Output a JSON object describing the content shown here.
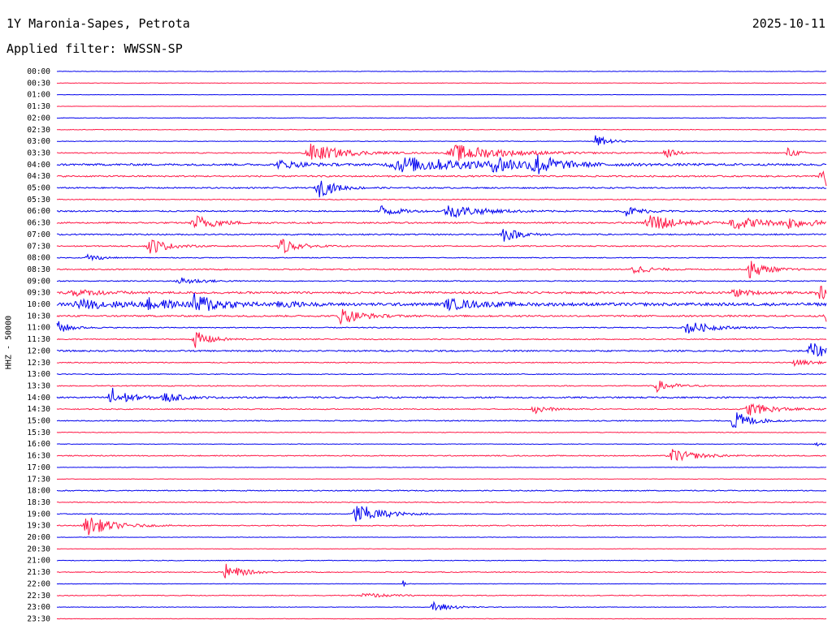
{
  "header": {
    "station": "1Y Maronia-Sapes, Petrota",
    "date": "2025-10-11",
    "filter_label": "Applied filter: WWSSN-SP"
  },
  "side_label": "HHZ - 50000",
  "colors": {
    "odd": "#0000ee",
    "even": "#ff1745",
    "ticks": "#000000"
  },
  "chart_data": {
    "type": "line",
    "title": "1Y Maronia-Sapes, Petrota",
    "subtitle": "Applied filter: WWSSN-SP",
    "ylabel": "HHZ - 50000",
    "xlabel": "",
    "row_labels": [
      "00:00",
      "00:30",
      "01:00",
      "01:30",
      "02:00",
      "02:30",
      "03:00",
      "03:30",
      "04:00",
      "04:30",
      "05:00",
      "05:30",
      "06:00",
      "06:30",
      "07:00",
      "07:30",
      "08:00",
      "08:30",
      "09:00",
      "09:30",
      "10:00",
      "10:30",
      "11:00",
      "11:30",
      "12:00",
      "12:30",
      "13:00",
      "13:30",
      "14:00",
      "14:30",
      "15:00",
      "15:30",
      "16:00",
      "16:30",
      "17:00",
      "17:30",
      "18:00",
      "18:30",
      "19:00",
      "19:30",
      "20:00",
      "20:30",
      "21:00",
      "21:30",
      "22:00",
      "22:30",
      "23:00",
      "23:30"
    ],
    "row_duration_min": 30,
    "noise_levels": [
      0.3,
      0.3,
      0.2,
      0.2,
      0.35,
      0.35,
      0.35,
      0.6,
      1.2,
      0.9,
      0.8,
      0.5,
      0.8,
      0.9,
      0.8,
      0.7,
      0.5,
      0.7,
      0.6,
      1.2,
      1.8,
      1.0,
      0.6,
      0.6,
      0.9,
      0.6,
      0.5,
      0.6,
      0.9,
      0.6,
      0.6,
      0.4,
      0.3,
      0.6,
      0.3,
      0.3,
      0.6,
      0.5,
      0.5,
      0.6,
      0.3,
      0.3,
      0.4,
      0.5,
      0.3,
      0.5,
      0.3,
      0.3
    ],
    "events": [
      {
        "row": 6,
        "t": 0.7,
        "amp": 8,
        "dur": 0.015
      },
      {
        "row": 7,
        "t": 0.33,
        "amp": 11,
        "dur": 0.04
      },
      {
        "row": 7,
        "t": 0.52,
        "amp": 10,
        "dur": 0.06
      },
      {
        "row": 7,
        "t": 0.79,
        "amp": 7,
        "dur": 0.012
      },
      {
        "row": 7,
        "t": 0.95,
        "amp": 6,
        "dur": 0.012
      },
      {
        "row": 8,
        "t": 0.29,
        "amp": 5,
        "dur": 0.03
      },
      {
        "row": 8,
        "t": 0.45,
        "amp": 9,
        "dur": 0.1
      },
      {
        "row": 8,
        "t": 0.57,
        "amp": 9,
        "dur": 0.03
      },
      {
        "row": 8,
        "t": 0.62,
        "amp": 13,
        "dur": 0.025
      },
      {
        "row": 9,
        "t": 0.995,
        "amp": 18,
        "dur": 0.02
      },
      {
        "row": 10,
        "t": 0.34,
        "amp": 12,
        "dur": 0.02
      },
      {
        "row": 12,
        "t": 0.42,
        "amp": 8,
        "dur": 0.02
      },
      {
        "row": 12,
        "t": 0.51,
        "amp": 8,
        "dur": 0.04
      },
      {
        "row": 12,
        "t": 0.74,
        "amp": 6,
        "dur": 0.02
      },
      {
        "row": 13,
        "t": 0.18,
        "amp": 10,
        "dur": 0.025
      },
      {
        "row": 13,
        "t": 0.77,
        "amp": 13,
        "dur": 0.03
      },
      {
        "row": 13,
        "t": 0.88,
        "amp": 8,
        "dur": 0.04
      },
      {
        "row": 13,
        "t": 0.95,
        "amp": 6,
        "dur": 0.03
      },
      {
        "row": 14,
        "t": 0.58,
        "amp": 9,
        "dur": 0.02
      },
      {
        "row": 15,
        "t": 0.12,
        "amp": 11,
        "dur": 0.02
      },
      {
        "row": 15,
        "t": 0.29,
        "amp": 10,
        "dur": 0.02
      },
      {
        "row": 16,
        "t": 0.04,
        "amp": 5,
        "dur": 0.015
      },
      {
        "row": 17,
        "t": 0.75,
        "amp": 6,
        "dur": 0.02
      },
      {
        "row": 17,
        "t": 0.9,
        "amp": 12,
        "dur": 0.02
      },
      {
        "row": 18,
        "t": 0.16,
        "amp": 5,
        "dur": 0.025
      },
      {
        "row": 19,
        "t": 0.02,
        "amp": 4,
        "dur": 0.04
      },
      {
        "row": 19,
        "t": 0.88,
        "amp": 5,
        "dur": 0.02
      },
      {
        "row": 19,
        "t": 0.99,
        "amp": 9,
        "dur": 0.02
      },
      {
        "row": 20,
        "t": 0.03,
        "amp": 5,
        "dur": 0.06
      },
      {
        "row": 20,
        "t": 0.12,
        "amp": 6,
        "dur": 0.03
      },
      {
        "row": 20,
        "t": 0.18,
        "amp": 12,
        "dur": 0.03
      },
      {
        "row": 20,
        "t": 0.29,
        "amp": 4,
        "dur": 0.02
      },
      {
        "row": 20,
        "t": 0.51,
        "amp": 6,
        "dur": 0.04
      },
      {
        "row": 21,
        "t": 0.37,
        "amp": 10,
        "dur": 0.025
      },
      {
        "row": 21,
        "t": 1.0,
        "amp": 10,
        "dur": 0.015
      },
      {
        "row": 22,
        "t": 0.0,
        "amp": 9,
        "dur": 0.015
      },
      {
        "row": 22,
        "t": 0.82,
        "amp": 8,
        "dur": 0.03
      },
      {
        "row": 23,
        "t": 0.18,
        "amp": 10,
        "dur": 0.02
      },
      {
        "row": 24,
        "t": 0.98,
        "amp": 10,
        "dur": 0.025
      },
      {
        "row": 25,
        "t": 0.96,
        "amp": 4,
        "dur": 0.02
      },
      {
        "row": 27,
        "t": 0.78,
        "amp": 7,
        "dur": 0.02
      },
      {
        "row": 28,
        "t": 0.07,
        "amp": 14,
        "dur": 0.02
      },
      {
        "row": 28,
        "t": 0.14,
        "amp": 6,
        "dur": 0.02
      },
      {
        "row": 29,
        "t": 0.62,
        "amp": 7,
        "dur": 0.015
      },
      {
        "row": 29,
        "t": 0.9,
        "amp": 8,
        "dur": 0.03
      },
      {
        "row": 30,
        "t": 0.88,
        "amp": 13,
        "dur": 0.02
      },
      {
        "row": 32,
        "t": 0.985,
        "amp": 5,
        "dur": 0.005
      },
      {
        "row": 33,
        "t": 0.8,
        "amp": 8,
        "dur": 0.03
      },
      {
        "row": 38,
        "t": 0.39,
        "amp": 13,
        "dur": 0.03
      },
      {
        "row": 39,
        "t": 0.04,
        "amp": 12,
        "dur": 0.03
      },
      {
        "row": 43,
        "t": 0.22,
        "amp": 10,
        "dur": 0.02
      },
      {
        "row": 44,
        "t": 0.45,
        "amp": 4,
        "dur": 0.005
      },
      {
        "row": 45,
        "t": 0.4,
        "amp": 3,
        "dur": 0.03
      },
      {
        "row": 46,
        "t": 0.49,
        "amp": 7,
        "dur": 0.02
      }
    ],
    "xlim_min": [
      0,
      30
    ],
    "grid": false,
    "legend": "none"
  }
}
